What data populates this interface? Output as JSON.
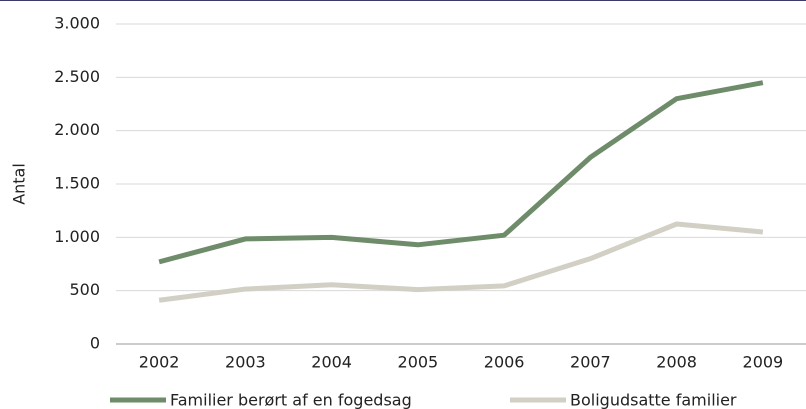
{
  "chart_data": {
    "type": "line",
    "y_label": "Antal",
    "categories": [
      "2002",
      "2003",
      "2004",
      "2005",
      "2006",
      "2007",
      "2008",
      "2009"
    ],
    "series": [
      {
        "name": "Familier berørt af en fogedsag",
        "color": "#6e8b6a",
        "values": [
          770,
          985,
          1000,
          930,
          1020,
          1750,
          2300,
          2450
        ]
      },
      {
        "name": "Boligudsatte familier",
        "color": "#d2cfc4",
        "values": [
          410,
          515,
          555,
          510,
          545,
          800,
          1125,
          1050
        ]
      }
    ],
    "ylim": [
      0,
      3000
    ],
    "yticks": [
      0,
      500,
      {
        "value": 1000,
        "label": "1.000"
      },
      {
        "value": 1500,
        "label": "1.500"
      },
      {
        "value": 2000,
        "label": "2.000"
      },
      {
        "value": 2500,
        "label": "2.500"
      },
      {
        "value": 3000,
        "label": "3.000"
      }
    ],
    "grid": true,
    "legend": "bottom"
  }
}
